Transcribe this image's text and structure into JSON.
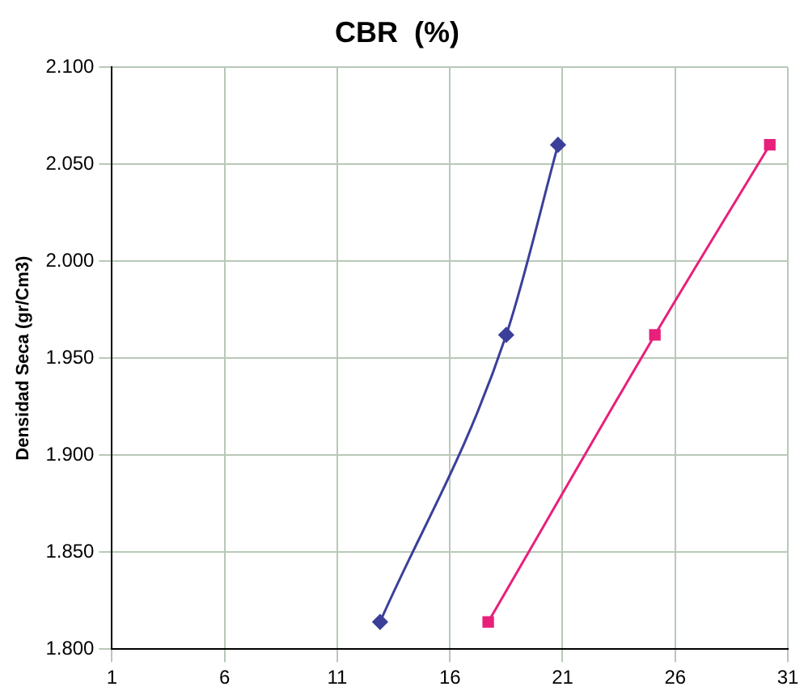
{
  "chart_data": {
    "type": "line",
    "title": "CBR  (%)",
    "ylabel": "Densidad Seca (gr/Cm3)",
    "series": [
      {
        "x": [
          12.9,
          18.5,
          20.8
        ],
        "values": [
          1.814,
          1.962,
          2.06
        ],
        "color": "#3b3f9a",
        "marker": "diamond"
      },
      {
        "x": [
          17.7,
          25.1,
          30.2
        ],
        "values": [
          1.814,
          1.962,
          2.06
        ],
        "color": "#e8207a",
        "marker": "square"
      }
    ],
    "xlim": [
      1,
      31
    ],
    "xticks": [
      1,
      6,
      11,
      16,
      21,
      26,
      31
    ],
    "ylim": [
      1.8,
      2.1
    ],
    "yticks": [
      {
        "value": 1.8,
        "label": "1.800"
      },
      {
        "value": 1.85,
        "label": "1.850"
      },
      {
        "value": 1.9,
        "label": "1.900"
      },
      {
        "value": 1.95,
        "label": "1.950"
      },
      {
        "value": 2.0,
        "label": "2.000"
      },
      {
        "value": 2.05,
        "label": "2.050"
      },
      {
        "value": 2.1,
        "label": "2.100"
      }
    ],
    "grid": true,
    "legend": false,
    "line_style": "solid"
  }
}
